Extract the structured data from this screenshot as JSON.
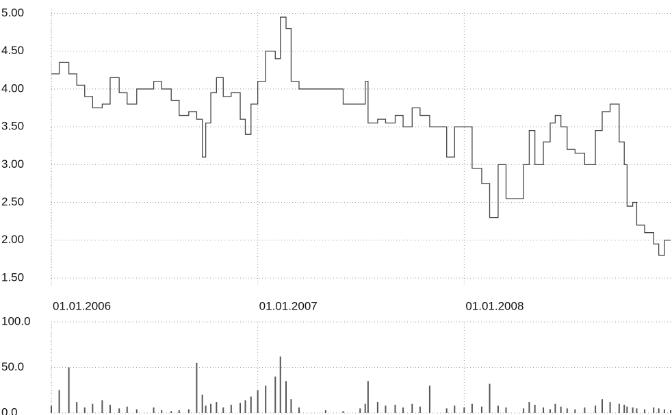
{
  "chart_data": [
    {
      "type": "line",
      "x": [
        "01.01.2006",
        "15.01.2006",
        "01.02.2006",
        "15.02.2006",
        "01.03.2006",
        "15.03.2006",
        "01.04.2006",
        "15.04.2006",
        "01.05.2006",
        "15.05.2006",
        "01.06.2006",
        "01.07.2006",
        "15.07.2006",
        "01.08.2006",
        "15.08.2006",
        "01.09.2006",
        "15.09.2006",
        "25.09.2006",
        "01.10.2006",
        "10.10.2006",
        "20.10.2006",
        "01.11.2006",
        "15.11.2006",
        "01.12.2006",
        "10.12.2006",
        "20.12.2006",
        "01.01.2007",
        "15.01.2007",
        "01.02.2007",
        "10.02.2007",
        "20.02.2007",
        "01.03.2007",
        "15.03.2007",
        "01.05.2007",
        "01.06.2007",
        "01.07.2007",
        "10.07.2007",
        "15.07.2007",
        "01.08.2007",
        "15.08.2007",
        "01.09.2007",
        "15.09.2007",
        "01.10.2007",
        "15.10.2007",
        "01.11.2007",
        "01.12.2007",
        "15.12.2007",
        "01.01.2008",
        "15.01.2008",
        "01.02.2008",
        "15.02.2008",
        "01.03.2008",
        "15.03.2008",
        "15.04.2008",
        "25.04.2008",
        "05.05.2008",
        "20.05.2008",
        "01.06.2008",
        "10.06.2008",
        "20.06.2008",
        "01.07.2008",
        "15.07.2008",
        "01.08.2008",
        "20.08.2008",
        "01.09.2008",
        "15.09.2008",
        "01.10.2008",
        "10.10.2008",
        "15.10.2008",
        "25.10.2008",
        "01.11.2008",
        "15.11.2008",
        "01.12.2008",
        "10.12.2008",
        "20.12.2008",
        "31.12.2008"
      ],
      "series": [
        {
          "color": "#444444",
          "values": [
            4.2,
            4.35,
            4.2,
            4.05,
            3.9,
            3.75,
            3.8,
            4.15,
            3.95,
            3.8,
            4.0,
            4.1,
            4.0,
            3.85,
            3.65,
            3.7,
            3.6,
            3.1,
            3.55,
            3.95,
            4.15,
            3.9,
            3.95,
            3.6,
            3.4,
            3.8,
            4.1,
            4.5,
            4.4,
            4.95,
            4.8,
            4.1,
            4.0,
            4.0,
            3.8,
            3.8,
            4.1,
            3.55,
            3.6,
            3.55,
            3.65,
            3.5,
            3.75,
            3.65,
            3.5,
            3.1,
            3.5,
            3.5,
            2.95,
            2.75,
            2.3,
            3.0,
            2.55,
            3.0,
            3.45,
            3.0,
            3.3,
            3.55,
            3.65,
            3.5,
            3.2,
            3.15,
            3.0,
            3.45,
            3.7,
            3.8,
            3.3,
            3.0,
            2.45,
            2.5,
            2.2,
            2.1,
            1.95,
            1.8,
            2.0,
            2.0
          ]
        }
      ],
      "xlim": [
        "01.01.2006",
        "31.12.2008"
      ],
      "xticks": [
        "01.01.2006",
        "01.01.2007",
        "01.01.2008"
      ],
      "ylim": [
        1.4,
        5.05
      ],
      "yticks": [
        {
          "value": 5,
          "label": "5.00"
        },
        {
          "value": 4.5,
          "label": "4.50"
        },
        {
          "value": 4,
          "label": "4.00"
        },
        {
          "value": 3.5,
          "label": "3.50"
        },
        {
          "value": 3,
          "label": "3.00"
        },
        {
          "value": 2.5,
          "label": "2.50"
        },
        {
          "value": 2,
          "label": "2.00"
        },
        {
          "value": 1.5,
          "label": "1.50"
        }
      ],
      "grid": true
    },
    {
      "type": "bar",
      "x": [
        "01.01.2006",
        "15.01.2006",
        "01.02.2006",
        "15.02.2006",
        "01.03.2006",
        "15.03.2006",
        "01.04.2006",
        "15.04.2006",
        "01.05.2006",
        "15.05.2006",
        "01.06.2006",
        "01.07.2006",
        "15.07.2006",
        "01.08.2006",
        "15.08.2006",
        "01.09.2006",
        "15.09.2006",
        "25.09.2006",
        "01.10.2006",
        "10.10.2006",
        "20.10.2006",
        "01.11.2006",
        "15.11.2006",
        "01.12.2006",
        "10.12.2006",
        "20.12.2006",
        "01.01.2007",
        "15.01.2007",
        "01.02.2007",
        "10.02.2007",
        "20.02.2007",
        "01.03.2007",
        "15.03.2007",
        "01.05.2007",
        "01.06.2007",
        "01.07.2007",
        "10.07.2007",
        "15.07.2007",
        "01.08.2007",
        "15.08.2007",
        "01.09.2007",
        "15.09.2007",
        "01.10.2007",
        "15.10.2007",
        "01.11.2007",
        "01.12.2007",
        "15.12.2007",
        "01.01.2008",
        "15.01.2008",
        "01.02.2008",
        "15.02.2008",
        "01.03.2008",
        "15.03.2008",
        "15.04.2008",
        "25.04.2008",
        "05.05.2008",
        "20.05.2008",
        "01.06.2008",
        "10.06.2008",
        "20.06.2008",
        "01.07.2008",
        "15.07.2008",
        "01.08.2008",
        "20.08.2008",
        "01.09.2008",
        "15.09.2008",
        "01.10.2008",
        "10.10.2008",
        "15.10.2008",
        "25.10.2008",
        "01.11.2008",
        "15.11.2008",
        "01.12.2008",
        "10.12.2008",
        "20.12.2008",
        "31.12.2008"
      ],
      "values": [
        8,
        25,
        50,
        12,
        6,
        10,
        14,
        9,
        5,
        7,
        4,
        6,
        3,
        2,
        3,
        4,
        55,
        20,
        8,
        10,
        12,
        6,
        9,
        11,
        14,
        18,
        25,
        30,
        40,
        62,
        35,
        15,
        6,
        3,
        2,
        5,
        10,
        35,
        12,
        8,
        9,
        6,
        10,
        7,
        30,
        5,
        8,
        6,
        10,
        7,
        32,
        8,
        6,
        5,
        12,
        9,
        6,
        4,
        10,
        7,
        5,
        4,
        6,
        8,
        15,
        12,
        10,
        9,
        7,
        6,
        5,
        4,
        6,
        5,
        4,
        3
      ],
      "color": "#555555",
      "xlim": [
        "01.01.2006",
        "31.12.2008"
      ],
      "ylim": [
        0,
        100
      ],
      "yticks": [
        {
          "value": 100,
          "label": "100.0"
        },
        {
          "value": 50,
          "label": "50.0"
        },
        {
          "value": 0,
          "label": "0.0"
        }
      ],
      "grid": true
    }
  ]
}
